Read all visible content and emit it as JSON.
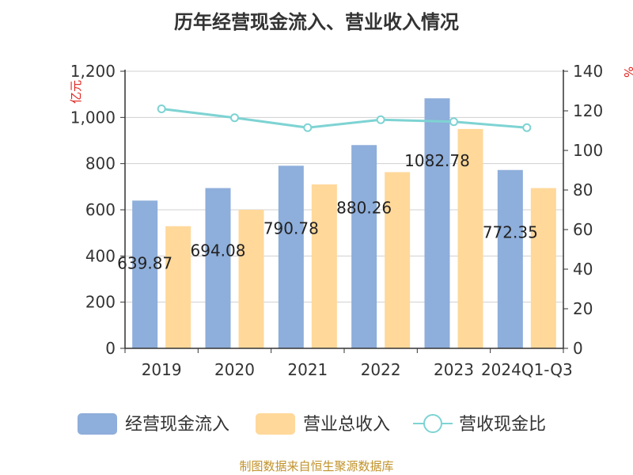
{
  "title": "历年经营现金流入、营业收入情况",
  "left_unit": "亿元",
  "right_unit": "%",
  "footer": "制图数据来自恒生聚源数据库",
  "colors": {
    "cash_bar": "#8eaedb",
    "revenue_bar": "#ffd89a",
    "ratio_line": "#7ed3d3",
    "axis": "#333333",
    "grid": "#d0d0d0",
    "unit_text": "#e0201c",
    "title": "#333333",
    "footer": "#c0922a"
  },
  "chart_data": {
    "type": "bar",
    "categories": [
      "2019",
      "2020",
      "2021",
      "2022",
      "2023",
      "2024Q1-Q3"
    ],
    "ylim_left": [
      0,
      1200
    ],
    "yticks_left": [
      "0",
      "200",
      "400",
      "600",
      "800",
      "1,000",
      "1,200"
    ],
    "ylim_right": [
      0,
      140
    ],
    "yticks_right": [
      "0",
      "20",
      "40",
      "60",
      "80",
      "100",
      "120",
      "140"
    ],
    "grid": true,
    "legend_position": "bottom",
    "series": [
      {
        "name": "经营现金流入",
        "type": "bar",
        "axis": "left",
        "values": [
          639.87,
          694.08,
          790.78,
          880.26,
          1082.78,
          772.35
        ],
        "labels": [
          "639.87",
          "694.08",
          "790.78",
          "880.26",
          "1082.78",
          "772.35"
        ]
      },
      {
        "name": "营业总收入",
        "type": "bar",
        "axis": "left",
        "values": [
          529,
          600,
          710,
          763,
          950,
          694
        ]
      },
      {
        "name": "营收现金比",
        "type": "line",
        "axis": "right",
        "values": [
          121,
          116.5,
          111.5,
          115.5,
          114.5,
          111.5
        ]
      }
    ]
  }
}
